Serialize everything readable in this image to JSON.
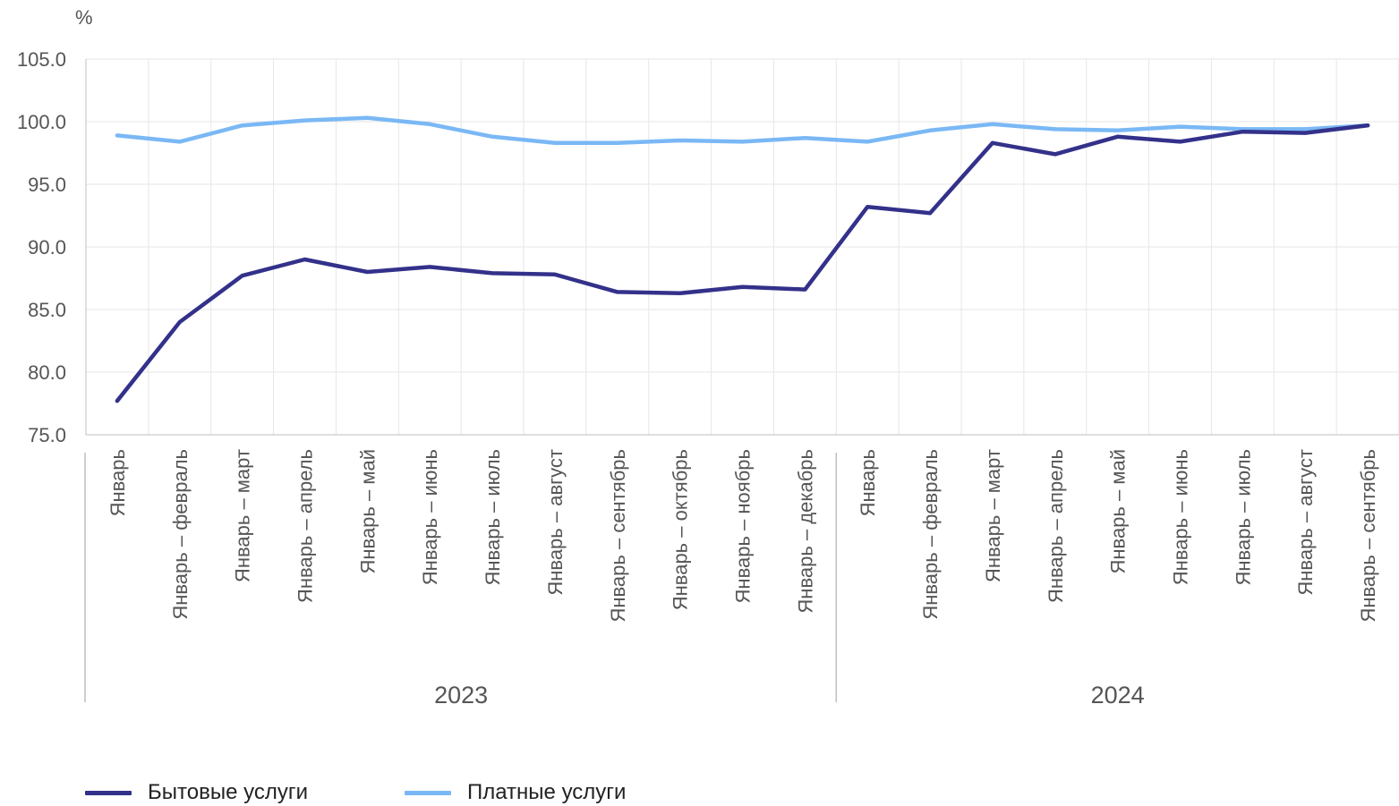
{
  "chart_data": {
    "type": "line",
    "unit_label": "%",
    "ylim": [
      75.0,
      105.0
    ],
    "y_ticks": [
      "75.0",
      "80.0",
      "85.0",
      "90.0",
      "95.0",
      "100.0",
      "105.0"
    ],
    "grid": true,
    "legend_position": "bottom-left",
    "categories": [
      "Январь",
      "Январь – февраль",
      "Январь – март",
      "Январь – апрель",
      "Январь – май",
      "Январь – июнь",
      "Январь – июль",
      "Январь – август",
      "Январь – сентябрь",
      "Январь – октябрь",
      "Январь – ноябрь",
      "Январь – декабрь",
      "Январь",
      "Январь – февраль",
      "Январь – март",
      "Январь – апрель",
      "Январь – май",
      "Январь – июнь",
      "Январь – июль",
      "Январь – август",
      "Январь – сентябрь"
    ],
    "groups": [
      {
        "label": "2023",
        "count": 12
      },
      {
        "label": "2024",
        "count": 9
      }
    ],
    "series": [
      {
        "name": "Бытовые услуги",
        "color": "#33318a",
        "values": [
          77.7,
          84.0,
          87.7,
          89.0,
          88.0,
          88.4,
          87.9,
          87.8,
          86.4,
          86.3,
          86.8,
          86.6,
          93.2,
          92.7,
          98.3,
          97.4,
          98.8,
          98.4,
          99.2,
          99.1,
          99.7
        ]
      },
      {
        "name": "Платные услуги",
        "color": "#7ab8f5",
        "values": [
          98.9,
          98.4,
          99.7,
          100.1,
          100.3,
          99.8,
          98.8,
          98.3,
          98.3,
          98.5,
          98.4,
          98.7,
          98.4,
          99.3,
          99.8,
          99.4,
          99.3,
          99.6,
          99.4,
          99.4,
          99.7
        ]
      }
    ]
  }
}
